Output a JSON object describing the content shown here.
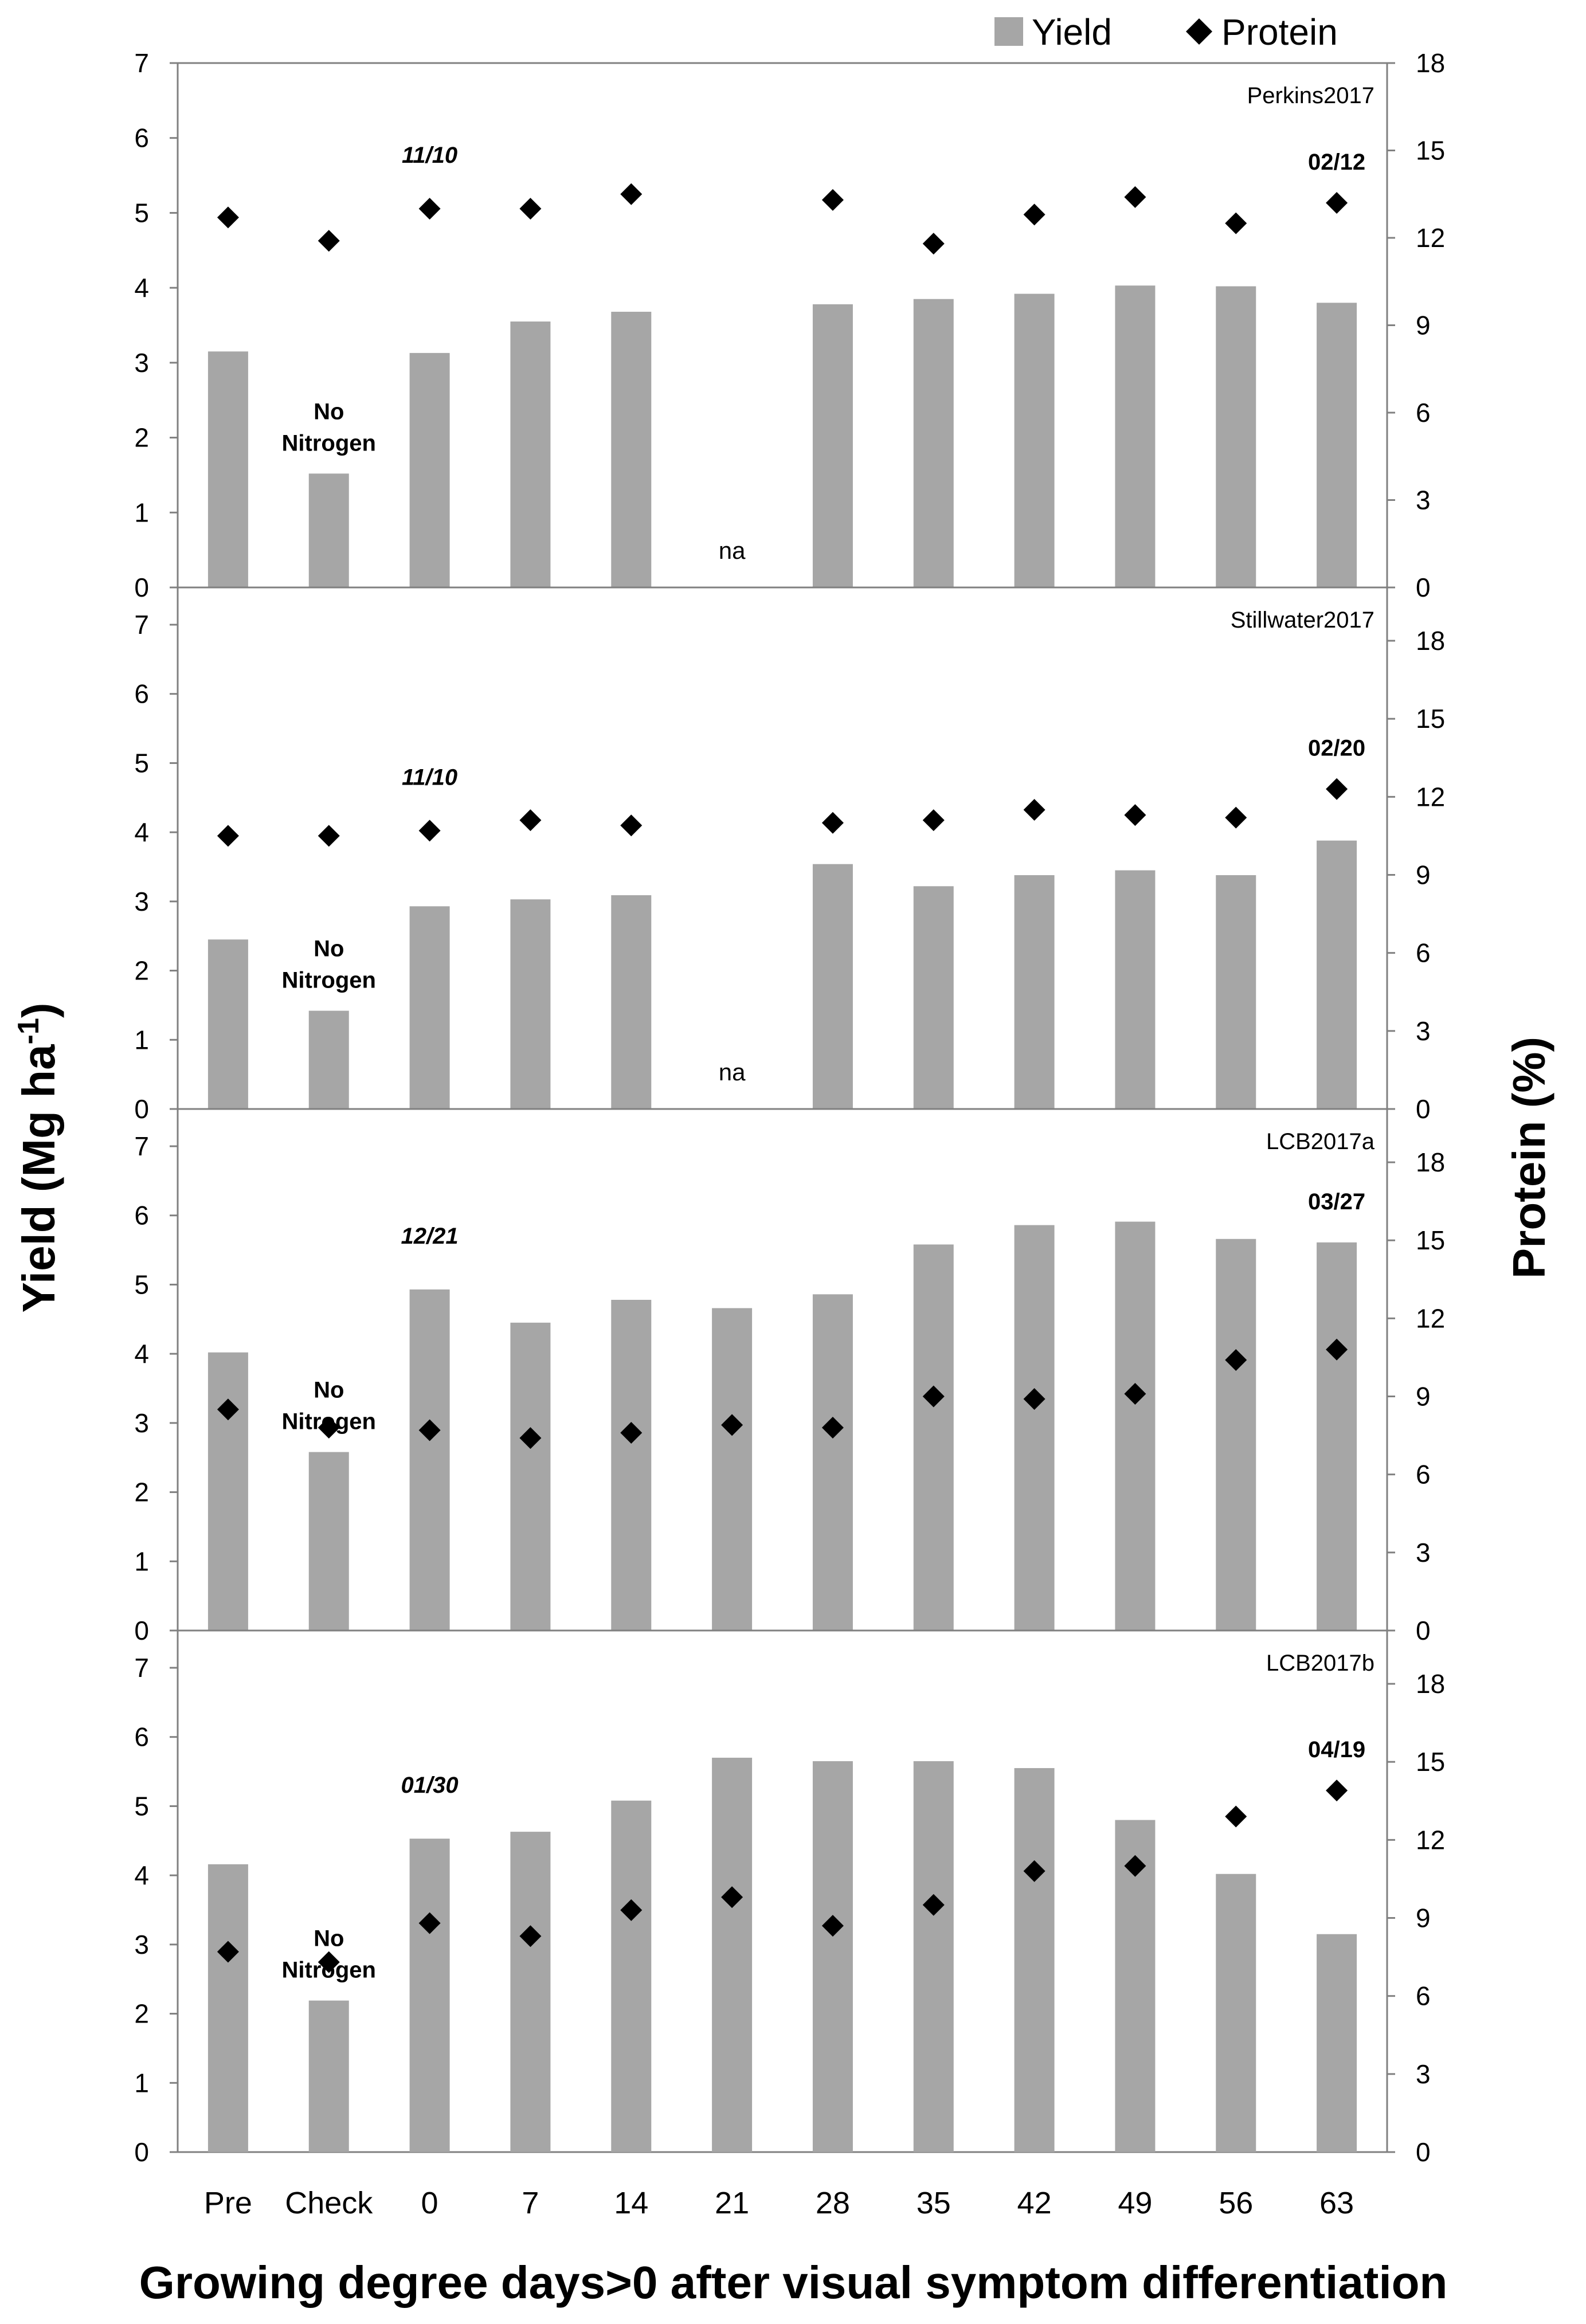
{
  "chart_data": {
    "type": "bar",
    "categories": [
      "Pre",
      "Check",
      "0",
      "7",
      "14",
      "21",
      "28",
      "35",
      "42",
      "49",
      "56",
      "63"
    ],
    "xlabel": "Growing degree days>0 after visual symptom differentiation",
    "ylabel": "Yield (Mg ha",
    "ylabel_sup": "-1",
    "ylabel_close": ")",
    "y2label": "Protein (%)",
    "legend": {
      "yield": "Yield",
      "protein": "Protein",
      "position": "top-right"
    },
    "ylim": [
      0,
      7
    ],
    "y2lim": [
      0,
      18
    ],
    "yticks": [
      "0",
      "1",
      "2",
      "3",
      "4",
      "5",
      "6",
      "7"
    ],
    "y2ticks": [
      "0",
      "3",
      "6",
      "9",
      "12",
      "15",
      "18"
    ],
    "colors": {
      "bar": "#a6a6a6",
      "marker": "#000000",
      "axis": "#808080"
    },
    "panels": [
      {
        "site": "Perkins2017",
        "yield": [
          3.15,
          1.52,
          3.13,
          3.55,
          3.68,
          null,
          3.78,
          3.85,
          3.92,
          4.03,
          4.02,
          3.8
        ],
        "protein": [
          12.7,
          11.9,
          13.0,
          13.0,
          13.5,
          null,
          13.3,
          11.8,
          12.8,
          13.4,
          12.5,
          13.2
        ],
        "start_date": "11/10",
        "start_date_index": 2,
        "end_date": "02/12",
        "end_date_index": 11,
        "check_note_1": "No",
        "check_note_2": "Nitrogen",
        "na_label": "na",
        "na_index": 5
      },
      {
        "site": "Stillwater2017",
        "yield": [
          2.45,
          1.42,
          2.93,
          3.03,
          3.09,
          null,
          3.54,
          3.22,
          3.38,
          3.45,
          3.38,
          3.88
        ],
        "protein": [
          10.5,
          10.5,
          10.7,
          11.1,
          10.9,
          null,
          11.0,
          11.1,
          11.5,
          11.3,
          11.2,
          12.3
        ],
        "start_date": "11/10",
        "start_date_index": 2,
        "end_date": "02/20",
        "end_date_index": 11,
        "check_note_1": "No",
        "check_note_2": "Nitrogen",
        "na_label": "na",
        "na_index": 5
      },
      {
        "site": "LCB2017a",
        "yield": [
          4.02,
          2.58,
          4.93,
          4.45,
          4.78,
          4.66,
          4.86,
          5.58,
          5.86,
          5.91,
          5.66,
          5.61
        ],
        "protein": [
          8.5,
          7.8,
          7.7,
          7.4,
          7.6,
          7.9,
          7.8,
          9.0,
          8.9,
          9.1,
          10.4,
          10.8
        ],
        "start_date": "12/21",
        "start_date_index": 2,
        "end_date": "03/27",
        "end_date_index": 11,
        "check_note_1": "No",
        "check_note_2": "Nitrogen"
      },
      {
        "site": "LCB2017b",
        "yield": [
          4.16,
          2.19,
          4.53,
          4.63,
          5.08,
          5.7,
          5.65,
          5.65,
          5.55,
          4.8,
          4.02,
          3.15
        ],
        "protein": [
          7.7,
          7.3,
          8.8,
          8.3,
          9.3,
          9.8,
          8.7,
          9.5,
          10.8,
          11.0,
          12.9,
          13.9
        ],
        "start_date": "01/30",
        "start_date_index": 2,
        "end_date": "04/19",
        "end_date_index": 11,
        "check_note_1": "No",
        "check_note_2": "Nitrogen"
      }
    ]
  }
}
